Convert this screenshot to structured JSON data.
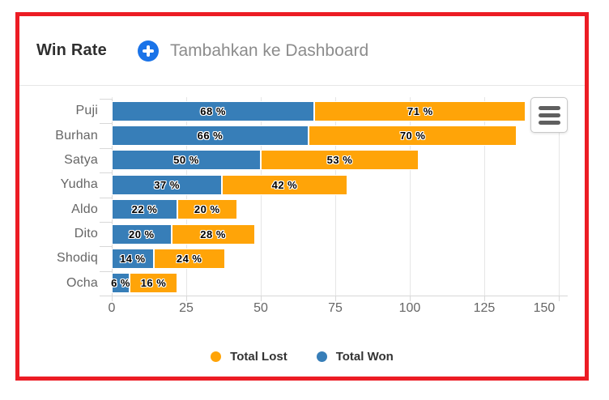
{
  "window": {
    "border_color": "#EC1C24",
    "background": "#FFFFFF"
  },
  "header": {
    "title": "Win Rate",
    "add_to_dashboard": {
      "label": "Tambahkan ke Dashboard",
      "icon": "plus-circle-icon",
      "icon_color": "#1A73E8"
    }
  },
  "chart_data": {
    "type": "bar",
    "orientation": "horizontal",
    "stacked": true,
    "title": "Win Rate",
    "categories": [
      "Puji",
      "Burhan",
      "Satya",
      "Yudha",
      "Aldo",
      "Dito",
      "Shodiq",
      "Ocha"
    ],
    "series": [
      {
        "name": "Total Won",
        "color": "#377EB8",
        "values": [
          68,
          66,
          50,
          37,
          22,
          20,
          14,
          6
        ]
      },
      {
        "name": "Total Lost",
        "color": "#FFA408",
        "values": [
          71,
          70,
          53,
          42,
          20,
          28,
          24,
          16
        ]
      }
    ],
    "data_label_format": "{value} %",
    "x_axis": {
      "min": 0,
      "max": 153,
      "ticks": [
        0,
        25,
        50,
        75,
        100,
        125,
        150
      ]
    },
    "grid": true,
    "grid_color": "#E6E6E6",
    "axis_text_color": "#666666",
    "legend": {
      "position": "bottom",
      "items": [
        {
          "label": "Total Lost",
          "color": "#FFA408"
        },
        {
          "label": "Total Won",
          "color": "#377EB8"
        }
      ]
    },
    "context_menu_icon": "hamburger-menu"
  }
}
